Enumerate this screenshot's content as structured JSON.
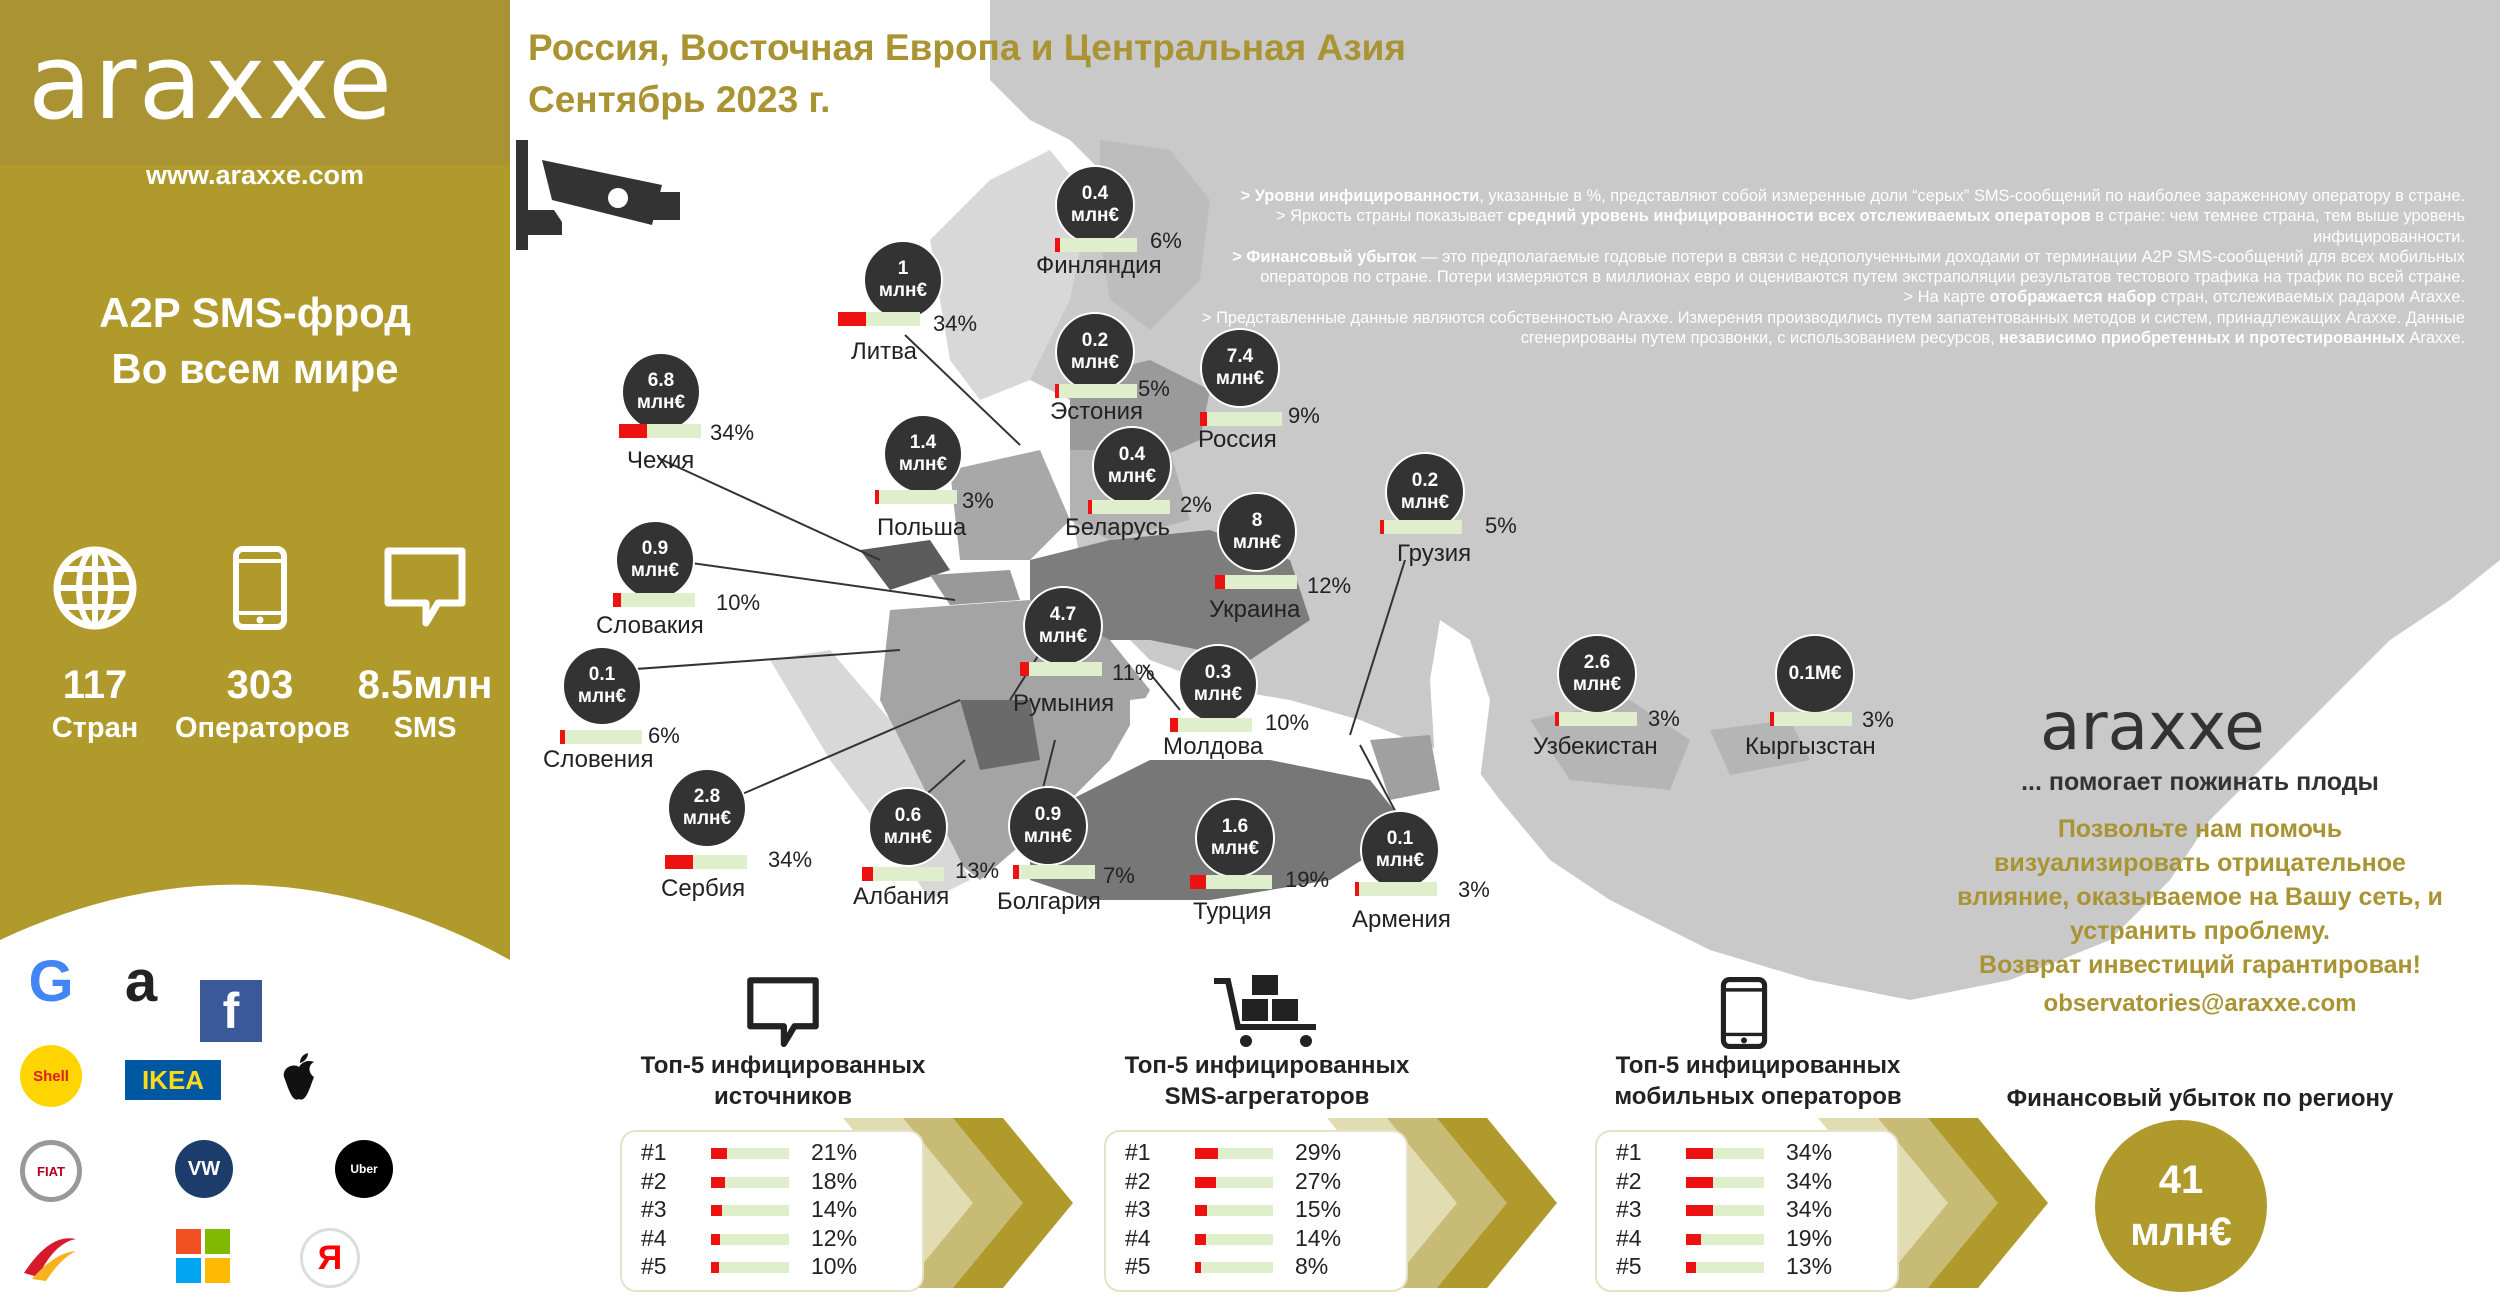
{
  "brand": {
    "logo": "araxxe",
    "website": "www.araxxe.com"
  },
  "title": {
    "line1": "Россия, Восточная Европа и Центральная Азия",
    "line2": "Сентябрь 2023 г."
  },
  "sidebar": {
    "title1": "A2P SMS-фрод",
    "title2": "Во всем мире",
    "stats": [
      {
        "icon": "globe-icon",
        "value": "117",
        "label": "Стран"
      },
      {
        "icon": "phone-icon",
        "value": "303",
        "label": "Операторов"
      },
      {
        "icon": "sms-bubble-icon",
        "value": "8.5млн",
        "label": "SMS"
      }
    ],
    "brands": [
      "G",
      "a",
      "f",
      "Shell",
      "IKEA",
      "apple",
      "FIAT",
      "VW",
      "Uber",
      "Iberia",
      "Microsoft",
      "Я"
    ]
  },
  "notes": {
    "p1_b": "> Уровни инфицированности",
    "p1": ", указанные в %, представляют собой измеренные доли “серых” SMS-сообщений по наиболее зараженному оператору в стране.",
    "p2_a": "> Яркость страны показывает ",
    "p2_b": "средний уровень инфицированности всех отслеживаемых операторов",
    "p2": " в стране: чем темнее страна, тем выше уровень инфицированности.",
    "p3_b": "> Финансовый убыток",
    "p3": " — это предполагаемые годовые потери в связи с недополученными доходами от терминации A2P SMS-сообщений для всех мобильных операторов по стране. Потери измеряются в миллионах евро и оцениваются путем экстраполяции результатов тестового трафика на трафик по всей стране.",
    "p4_a": "> На карте ",
    "p4_b": "отображается набор",
    "p4": " стран, отслеживаемых радаром Araxxe.",
    "p5": "> Представленные данные являются собственностью Araxxe. Измерения производились путем запатентованных методов и систем, принадлежащих Araxxe. Данные сгенерированы путем прозвонки, с использованием ресурсов, ",
    "p5_b": "независимо приобретенных и протестированных",
    "p5_end": " Araxxe."
  },
  "colors": {
    "gold": "#b09a2c",
    "bubble": "#333333",
    "bar_fill": "#ee1111",
    "bar_bg": "#dfeecb",
    "map_land": "#c9c9c9",
    "sea": "#ffffff"
  },
  "chart_data": {
    "type": "map",
    "countries": [
      {
        "name": "Финляндия",
        "loss_line1": "0.4",
        "loss_line2": "млн€",
        "infection_pct": 6,
        "pct_label": "6%"
      },
      {
        "name": "Литва",
        "loss_line1": "1",
        "loss_line2": "млн€",
        "infection_pct": 34,
        "pct_label": "34%"
      },
      {
        "name": "Эстония",
        "loss_line1": "0.2",
        "loss_line2": "млн€",
        "infection_pct": 5,
        "pct_label": "5%"
      },
      {
        "name": "Россия",
        "loss_line1": "7.4",
        "loss_line2": "млн€",
        "infection_pct": 9,
        "pct_label": "9%"
      },
      {
        "name": "Чехия",
        "loss_line1": "6.8",
        "loss_line2": "млн€",
        "infection_pct": 34,
        "pct_label": "34%"
      },
      {
        "name": "Польша",
        "loss_line1": "1.4",
        "loss_line2": "млн€",
        "infection_pct": 3,
        "pct_label": "3%"
      },
      {
        "name": "Беларусь",
        "loss_line1": "0.4",
        "loss_line2": "млн€",
        "infection_pct": 2,
        "pct_label": "2%"
      },
      {
        "name": "Грузия",
        "loss_line1": "0.2",
        "loss_line2": "млн€",
        "infection_pct": 5,
        "pct_label": "5%"
      },
      {
        "name": "Словакия",
        "loss_line1": "0.9",
        "loss_line2": "млн€",
        "infection_pct": 10,
        "pct_label": "10%"
      },
      {
        "name": "Украина",
        "loss_line1": "8",
        "loss_line2": "млн€",
        "infection_pct": 12,
        "pct_label": "12%"
      },
      {
        "name": "Румыния",
        "loss_line1": "4.7",
        "loss_line2": "млн€",
        "infection_pct": 11,
        "pct_label": "11%"
      },
      {
        "name": "Словения",
        "loss_line1": "0.1",
        "loss_line2": "млн€",
        "infection_pct": 6,
        "pct_label": "6%"
      },
      {
        "name": "Молдова",
        "loss_line1": "0.3",
        "loss_line2": "млн€",
        "infection_pct": 10,
        "pct_label": "10%"
      },
      {
        "name": "Узбекистан",
        "loss_line1": "2.6",
        "loss_line2": "млн€",
        "infection_pct": 3,
        "pct_label": "3%"
      },
      {
        "name": "Кыргызстан",
        "loss_line1": "0.1М€",
        "loss_line2": "",
        "infection_pct": 3,
        "pct_label": "3%"
      },
      {
        "name": "Сербия",
        "loss_line1": "2.8",
        "loss_line2": "млн€",
        "infection_pct": 34,
        "pct_label": "34%"
      },
      {
        "name": "Албания",
        "loss_line1": "0.6",
        "loss_line2": "млн€",
        "infection_pct": 13,
        "pct_label": "13%"
      },
      {
        "name": "Болгария",
        "loss_line1": "0.9",
        "loss_line2": "млн€",
        "infection_pct": 7,
        "pct_label": "7%"
      },
      {
        "name": "Турция",
        "loss_line1": "1.6",
        "loss_line2": "млн€",
        "infection_pct": 19,
        "pct_label": "19%"
      },
      {
        "name": "Армения",
        "loss_line1": "0.1",
        "loss_line2": "млн€",
        "infection_pct": 3,
        "pct_label": "3%"
      }
    ],
    "top5": [
      {
        "icon": "sms-bubble-icon",
        "title1": "Топ-5 инфицированных",
        "title2": "источников",
        "rows": [
          {
            "rank": "#1",
            "pct": 21,
            "label": "21%"
          },
          {
            "rank": "#2",
            "pct": 18,
            "label": "18%"
          },
          {
            "rank": "#3",
            "pct": 14,
            "label": "14%"
          },
          {
            "rank": "#4",
            "pct": 12,
            "label": "12%"
          },
          {
            "rank": "#5",
            "pct": 10,
            "label": "10%"
          }
        ]
      },
      {
        "icon": "cart-icon",
        "title1": "Топ-5 инфицированных",
        "title2": "SMS-агрегаторов",
        "rows": [
          {
            "rank": "#1",
            "pct": 29,
            "label": "29%"
          },
          {
            "rank": "#2",
            "pct": 27,
            "label": "27%"
          },
          {
            "rank": "#3",
            "pct": 15,
            "label": "15%"
          },
          {
            "rank": "#4",
            "pct": 14,
            "label": "14%"
          },
          {
            "rank": "#5",
            "pct": 8,
            "label": "8%"
          }
        ]
      },
      {
        "icon": "phone-icon",
        "title1": "Топ-5 инфицированных",
        "title2": "мобильных операторов",
        "rows": [
          {
            "rank": "#1",
            "pct": 34,
            "label": "34%"
          },
          {
            "rank": "#2",
            "pct": 34,
            "label": "34%"
          },
          {
            "rank": "#3",
            "pct": 34,
            "label": "34%"
          },
          {
            "rank": "#4",
            "pct": 19,
            "label": "19%"
          },
          {
            "rank": "#5",
            "pct": 13,
            "label": "13%"
          }
        ]
      }
    ],
    "financial_loss": {
      "title": "Финансовый убыток по региону",
      "value": "41",
      "unit": "млн€"
    }
  },
  "promo": {
    "logo": "araxxe",
    "tagline": "... помогает пожинать плоды",
    "text1": "Позвольте нам помочь",
    "text2": "визуализировать отрицательное",
    "text3": "влияние, оказываемое на Вашу сеть, и",
    "text4": "устранить проблему.",
    "text5": "Возврат инвестиций гарантирован!",
    "email": "observatories@araxxe.com"
  }
}
